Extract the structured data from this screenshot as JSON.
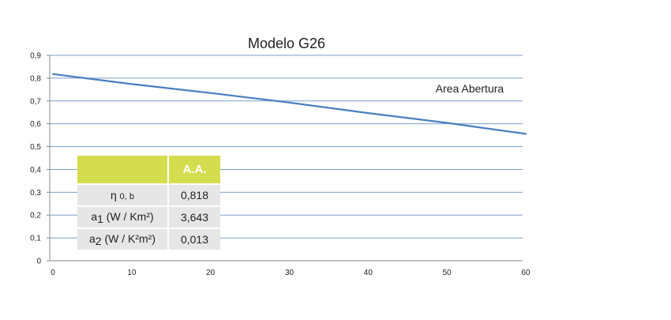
{
  "chart_data": {
    "type": "line",
    "title": "Modelo G26",
    "xlabel": "",
    "ylabel": "",
    "xlim": [
      0,
      60
    ],
    "ylim": [
      0,
      0.9
    ],
    "x_ticks": [
      "0",
      "10",
      "20",
      "30",
      "40",
      "50",
      "60"
    ],
    "y_ticks": [
      "0",
      "0,1",
      "0,2",
      "0,3",
      "0,4",
      "0,5",
      "0,6",
      "0,7",
      "0,8",
      "0,9"
    ],
    "grid": true,
    "series": [
      {
        "name": "Area Abertura",
        "color": "#4a7ebf",
        "x": [
          0,
          10,
          20,
          30,
          40,
          50,
          60
        ],
        "y": [
          0.818,
          0.774,
          0.735,
          0.693,
          0.647,
          0.604,
          0.556
        ]
      }
    ],
    "colors": {
      "line": "#4a7ebf",
      "grid": "#7aa0c8",
      "table_header": "#d4dd4d",
      "table_cell": "#e6e6e6"
    }
  },
  "table": {
    "header": [
      "",
      "A.A."
    ],
    "rows": [
      {
        "label_main": "η",
        "label_sub": "0, b",
        "value": "0,818"
      },
      {
        "label_main": "a",
        "label_sub": "1",
        "label_rest": " (W / Km²)",
        "value": "3,643"
      },
      {
        "label_main": "a",
        "label_sub": "2",
        "label_rest": " (W / K²m²)",
        "value": "0,013"
      }
    ]
  }
}
